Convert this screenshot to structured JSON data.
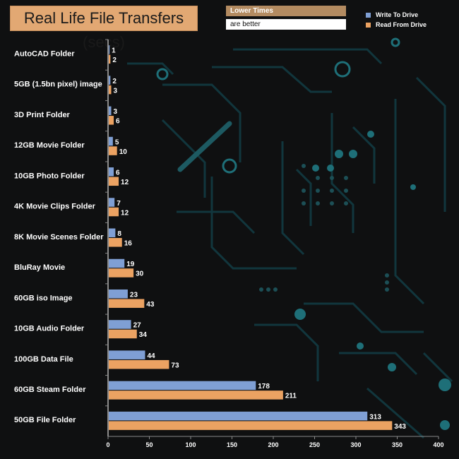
{
  "chart_data": {
    "type": "bar",
    "orientation": "horizontal",
    "title": "Real Life File Transfers (secs)",
    "subtitle": [
      "Lower Times",
      "are better"
    ],
    "categories": [
      "AutoCAD Folder",
      "5GB (1.5bn pixel) image",
      "3D Print Folder",
      "12GB Movie Folder",
      "10GB Photo Folder",
      "4K Movie Clips Folder",
      "8K Movie Scenes Folder",
      "BluRay Movie",
      "60GB iso Image",
      "10GB Audio Folder",
      "100GB Data File",
      "60GB Steam Folder",
      "50GB File Folder"
    ],
    "series": [
      {
        "name": "Write To  Drive",
        "color": "#7f9fd4",
        "values": [
          1,
          2,
          3,
          5,
          6,
          7,
          8,
          19,
          23,
          27,
          44,
          178,
          313
        ]
      },
      {
        "name": "Read From  Drive",
        "color": "#eba262",
        "values": [
          2,
          3,
          6,
          10,
          12,
          12,
          16,
          30,
          43,
          34,
          73,
          211,
          343
        ]
      }
    ],
    "xlim": [
      0,
      400
    ],
    "xticks": [
      0,
      50,
      100,
      150,
      200,
      250,
      300,
      350,
      400
    ],
    "legend_position": "top-right",
    "grid": false
  }
}
